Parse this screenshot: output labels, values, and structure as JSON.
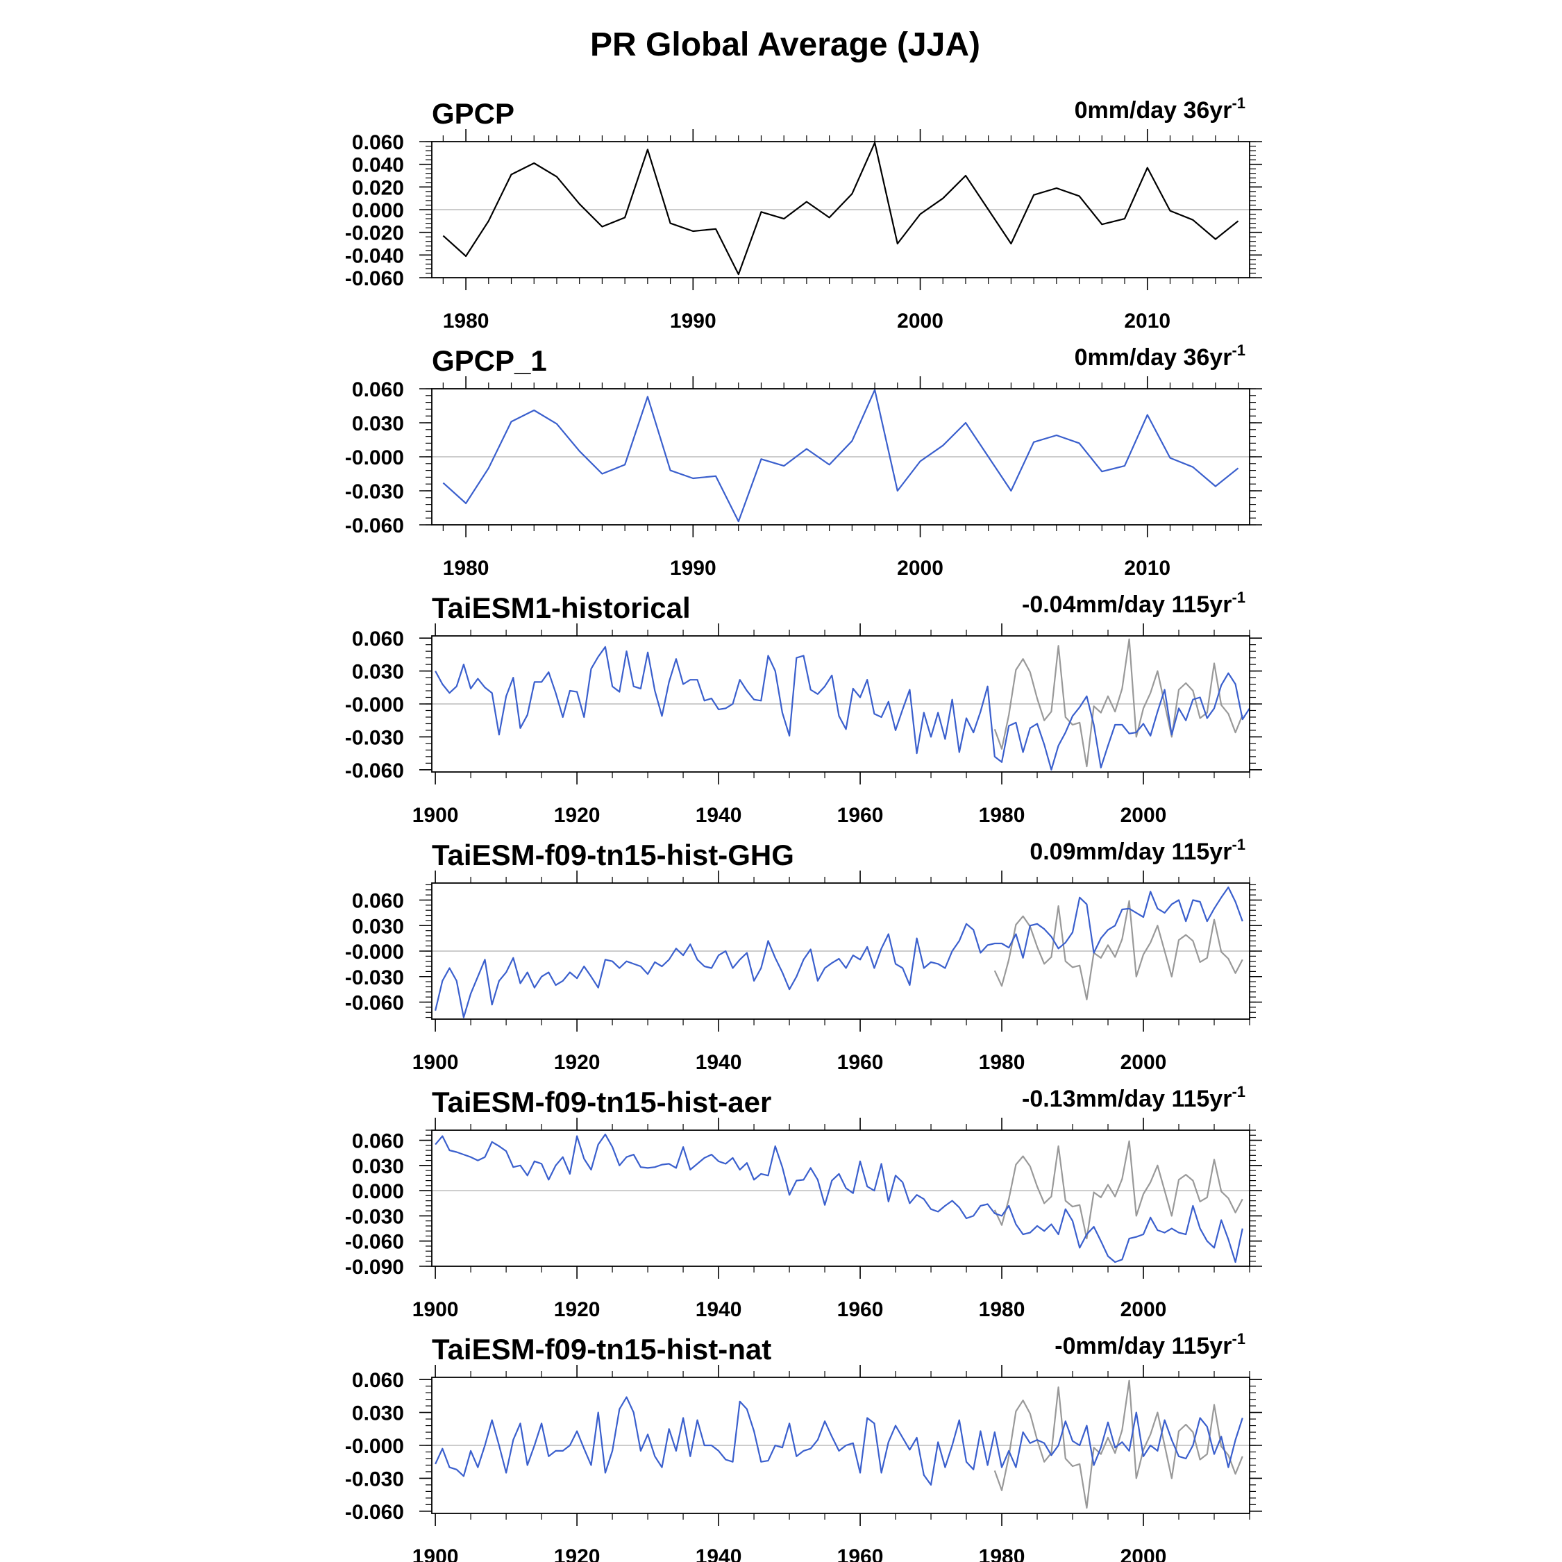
{
  "title": "PR Global Average (JJA)",
  "colors": {
    "observed": "#000000",
    "model": "#3a5fcd",
    "overlay": "#999999",
    "zero_line": "#bbbbbb",
    "frame": "#000000"
  },
  "chart_data": [
    {
      "type": "line",
      "panel_title": "GPCP",
      "trend_value": "0mm/day 36yr",
      "trend_sup": "-1",
      "xlim": [
        1978.5,
        2014.5
      ],
      "ylim": [
        -0.06,
        0.06
      ],
      "yticks": [
        -0.06,
        -0.04,
        -0.02,
        0.0,
        0.02,
        0.04,
        0.06
      ],
      "ytick_labels": [
        "-0.060",
        "-0.040",
        "-0.020",
        "0.000",
        "0.020",
        "0.040",
        "0.060"
      ],
      "xticks": [
        1980,
        1990,
        2000,
        2010
      ],
      "xtick_labels": [
        "1980",
        "1990",
        "2000",
        "2010"
      ],
      "series": [
        {
          "role": "observed",
          "color": "#000000",
          "x_start": 1979,
          "values": [
            -0.023,
            -0.041,
            -0.01,
            0.031,
            0.041,
            0.029,
            0.005,
            -0.015,
            -0.007,
            0.053,
            -0.012,
            -0.019,
            -0.017,
            -0.057,
            -0.002,
            -0.008,
            0.007,
            -0.007,
            0.014,
            0.059,
            -0.03,
            -0.004,
            0.01,
            0.03,
            0.0,
            -0.03,
            0.013,
            0.019,
            0.012,
            -0.013,
            -0.008,
            0.037,
            -0.001,
            -0.009,
            -0.026,
            -0.01
          ]
        }
      ]
    },
    {
      "type": "line",
      "panel_title": "GPCP_1",
      "trend_value": "0mm/day 36yr",
      "trend_sup": "-1",
      "xlim": [
        1978.5,
        2014.5
      ],
      "ylim": [
        -0.06,
        0.06
      ],
      "yticks": [
        -0.06,
        -0.03,
        0.0,
        0.03,
        0.06
      ],
      "ytick_labels": [
        "-0.060",
        "-0.030",
        "-0.000",
        "0.030",
        "0.060"
      ],
      "xticks": [
        1980,
        1990,
        2000,
        2010
      ],
      "xtick_labels": [
        "1980",
        "1990",
        "2000",
        "2010"
      ],
      "series": [
        {
          "role": "model",
          "color": "#3a5fcd",
          "x_start": 1979,
          "values": [
            -0.023,
            -0.041,
            -0.01,
            0.031,
            0.041,
            0.029,
            0.005,
            -0.015,
            -0.007,
            0.053,
            -0.012,
            -0.019,
            -0.017,
            -0.057,
            -0.002,
            -0.008,
            0.007,
            -0.007,
            0.014,
            0.059,
            -0.03,
            -0.004,
            0.01,
            0.03,
            0.0,
            -0.03,
            0.013,
            0.019,
            0.012,
            -0.013,
            -0.008,
            0.037,
            -0.001,
            -0.009,
            -0.026,
            -0.01
          ]
        }
      ]
    },
    {
      "type": "line",
      "panel_title": "TaiESM1-historical",
      "trend_value": "-0.04mm/day 115yr",
      "trend_sup": "-1",
      "xlim": [
        1899.5,
        2015
      ],
      "ylim": [
        -0.062,
        0.062
      ],
      "yticks": [
        -0.06,
        -0.03,
        0.0,
        0.03,
        0.06
      ],
      "ytick_labels": [
        "-0.060",
        "-0.030",
        "-0.000",
        "0.030",
        "0.060"
      ],
      "xticks": [
        1900,
        1920,
        1940,
        1960,
        1980,
        2000
      ],
      "xtick_labels": [
        "1900",
        "1920",
        "1940",
        "1960",
        "1980",
        "2000"
      ],
      "series": [
        {
          "role": "model",
          "color": "#3a5fcd",
          "x_start": 1900,
          "values": [
            0.03,
            0.018,
            0.01,
            0.016,
            0.036,
            0.014,
            0.023,
            0.015,
            0.01,
            -0.028,
            0.007,
            0.024,
            -0.022,
            -0.01,
            0.02,
            0.02,
            0.029,
            0.01,
            -0.012,
            0.012,
            0.011,
            -0.012,
            0.032,
            0.043,
            0.052,
            0.016,
            0.011,
            0.048,
            0.016,
            0.014,
            0.047,
            0.012,
            -0.011,
            0.02,
            0.041,
            0.018,
            0.022,
            0.022,
            0.003,
            0.005,
            -0.005,
            -0.004,
            0.0,
            0.022,
            0.012,
            0.004,
            0.003,
            0.044,
            0.03,
            -0.008,
            -0.029,
            0.042,
            0.044,
            0.013,
            0.009,
            0.016,
            0.026,
            -0.011,
            -0.023,
            0.014,
            0.006,
            0.022,
            -0.009,
            -0.012,
            0.002,
            -0.024,
            -0.005,
            0.013,
            -0.045,
            -0.008,
            -0.03,
            -0.008,
            -0.032,
            0.004,
            -0.044,
            -0.013,
            -0.026,
            -0.007,
            0.016,
            -0.048,
            -0.053,
            -0.02,
            -0.017,
            -0.044,
            -0.022,
            -0.018,
            -0.037,
            -0.06,
            -0.038,
            -0.026,
            -0.011,
            -0.003,
            0.007,
            -0.019,
            -0.058,
            -0.038,
            -0.019,
            -0.019,
            -0.027,
            -0.026,
            -0.018,
            -0.029,
            -0.007,
            0.013,
            -0.028,
            -0.004,
            -0.015,
            0.004,
            0.006,
            -0.013,
            -0.004,
            0.017,
            0.028,
            0.018,
            -0.014,
            -0.004
          ]
        },
        {
          "role": "overlay",
          "color": "#999999",
          "x_start": 1979,
          "values": [
            -0.023,
            -0.041,
            -0.01,
            0.031,
            0.041,
            0.029,
            0.005,
            -0.015,
            -0.007,
            0.053,
            -0.012,
            -0.019,
            -0.017,
            -0.057,
            -0.002,
            -0.008,
            0.007,
            -0.007,
            0.014,
            0.059,
            -0.03,
            -0.004,
            0.01,
            0.03,
            0.0,
            -0.03,
            0.013,
            0.019,
            0.012,
            -0.013,
            -0.008,
            0.037,
            -0.001,
            -0.009,
            -0.026,
            -0.01
          ]
        }
      ]
    },
    {
      "type": "line",
      "panel_title": "TaiESM-f09-tn15-hist-GHG",
      "trend_value": "0.09mm/day 115yr",
      "trend_sup": "-1",
      "xlim": [
        1899.5,
        2015
      ],
      "ylim": [
        -0.08,
        0.08
      ],
      "yticks": [
        -0.06,
        -0.03,
        0.0,
        0.03,
        0.06
      ],
      "ytick_labels": [
        "-0.060",
        "-0.030",
        "-0.000",
        "0.030",
        "0.060"
      ],
      "xticks": [
        1900,
        1920,
        1940,
        1960,
        1980,
        2000
      ],
      "xtick_labels": [
        "1900",
        "1920",
        "1940",
        "1960",
        "1980",
        "2000"
      ],
      "series": [
        {
          "role": "model",
          "color": "#3a5fcd",
          "x_start": 1900,
          "values": [
            -0.07,
            -0.035,
            -0.02,
            -0.035,
            -0.078,
            -0.05,
            -0.03,
            -0.01,
            -0.063,
            -0.035,
            -0.025,
            -0.008,
            -0.038,
            -0.025,
            -0.043,
            -0.03,
            -0.025,
            -0.04,
            -0.035,
            -0.025,
            -0.032,
            -0.018,
            -0.03,
            -0.043,
            -0.01,
            -0.012,
            -0.02,
            -0.012,
            -0.015,
            -0.018,
            -0.027,
            -0.013,
            -0.018,
            -0.01,
            0.003,
            -0.005,
            0.008,
            -0.01,
            -0.018,
            -0.02,
            -0.005,
            0.0,
            -0.02,
            -0.01,
            -0.002,
            -0.035,
            -0.02,
            0.012,
            -0.008,
            -0.025,
            -0.045,
            -0.03,
            -0.01,
            0.002,
            -0.035,
            -0.02,
            -0.014,
            -0.009,
            -0.02,
            -0.005,
            -0.01,
            0.005,
            -0.02,
            0.003,
            0.02,
            -0.015,
            -0.02,
            -0.04,
            0.015,
            -0.02,
            -0.013,
            -0.015,
            -0.02,
            0.0,
            0.012,
            0.032,
            0.025,
            -0.002,
            0.007,
            0.009,
            0.009,
            0.004,
            0.02,
            -0.008,
            0.03,
            0.032,
            0.026,
            0.017,
            0.003,
            0.01,
            0.022,
            0.063,
            0.055,
            -0.002,
            0.015,
            0.025,
            0.03,
            0.049,
            0.05,
            0.045,
            0.04,
            0.07,
            0.05,
            0.045,
            0.055,
            0.06,
            0.035,
            0.06,
            0.058,
            0.035,
            0.05,
            0.063,
            0.075,
            0.058,
            0.035
          ]
        },
        {
          "role": "overlay",
          "color": "#999999",
          "x_start": 1979,
          "values": [
            -0.023,
            -0.041,
            -0.01,
            0.031,
            0.041,
            0.029,
            0.005,
            -0.015,
            -0.007,
            0.053,
            -0.012,
            -0.019,
            -0.017,
            -0.057,
            -0.002,
            -0.008,
            0.007,
            -0.007,
            0.014,
            0.059,
            -0.03,
            -0.004,
            0.01,
            0.03,
            0.0,
            -0.03,
            0.013,
            0.019,
            0.012,
            -0.013,
            -0.008,
            0.037,
            -0.001,
            -0.009,
            -0.026,
            -0.01
          ]
        }
      ]
    },
    {
      "type": "line",
      "panel_title": "TaiESM-f09-tn15-hist-aer",
      "trend_value": "-0.13mm/day 115yr",
      "trend_sup": "-1",
      "xlim": [
        1899.5,
        2015
      ],
      "ylim": [
        -0.09,
        0.072
      ],
      "yticks": [
        -0.09,
        -0.06,
        -0.03,
        0.0,
        0.03,
        0.06
      ],
      "ytick_labels": [
        "-0.090",
        "-0.060",
        "-0.030",
        "0.000",
        "0.030",
        "0.060"
      ],
      "xticks": [
        1900,
        1920,
        1940,
        1960,
        1980,
        2000
      ],
      "xtick_labels": [
        "1900",
        "1920",
        "1940",
        "1960",
        "1980",
        "2000"
      ],
      "series": [
        {
          "role": "model",
          "color": "#3a5fcd",
          "x_start": 1900,
          "values": [
            0.055,
            0.065,
            0.048,
            0.046,
            0.043,
            0.04,
            0.036,
            0.04,
            0.058,
            0.053,
            0.047,
            0.028,
            0.03,
            0.018,
            0.035,
            0.032,
            0.013,
            0.03,
            0.04,
            0.02,
            0.065,
            0.038,
            0.025,
            0.055,
            0.067,
            0.052,
            0.03,
            0.04,
            0.043,
            0.028,
            0.027,
            0.028,
            0.031,
            0.032,
            0.027,
            0.052,
            0.025,
            0.032,
            0.039,
            0.043,
            0.035,
            0.032,
            0.039,
            0.025,
            0.033,
            0.013,
            0.02,
            0.018,
            0.053,
            0.028,
            -0.005,
            0.012,
            0.013,
            0.027,
            0.013,
            -0.017,
            0.012,
            0.02,
            0.003,
            -0.003,
            0.035,
            0.005,
            0.0,
            0.032,
            -0.013,
            0.018,
            0.01,
            -0.015,
            -0.005,
            -0.01,
            -0.022,
            -0.025,
            -0.018,
            -0.012,
            -0.02,
            -0.033,
            -0.03,
            -0.018,
            -0.016,
            -0.027,
            -0.03,
            -0.018,
            -0.04,
            -0.052,
            -0.05,
            -0.042,
            -0.048,
            -0.04,
            -0.052,
            -0.022,
            -0.036,
            -0.068,
            -0.052,
            -0.043,
            -0.06,
            -0.078,
            -0.085,
            -0.082,
            -0.057,
            -0.055,
            -0.052,
            -0.032,
            -0.047,
            -0.05,
            -0.045,
            -0.05,
            -0.052,
            -0.018,
            -0.045,
            -0.06,
            -0.068,
            -0.035,
            -0.058,
            -0.085,
            -0.045
          ]
        },
        {
          "role": "overlay",
          "color": "#999999",
          "x_start": 1979,
          "values": [
            -0.023,
            -0.041,
            -0.01,
            0.031,
            0.041,
            0.029,
            0.005,
            -0.015,
            -0.007,
            0.053,
            -0.012,
            -0.019,
            -0.017,
            -0.057,
            -0.002,
            -0.008,
            0.007,
            -0.007,
            0.014,
            0.059,
            -0.03,
            -0.004,
            0.01,
            0.03,
            0.0,
            -0.03,
            0.013,
            0.019,
            0.012,
            -0.013,
            -0.008,
            0.037,
            -0.001,
            -0.009,
            -0.026,
            -0.01
          ]
        }
      ]
    },
    {
      "type": "line",
      "panel_title": "TaiESM-f09-tn15-hist-nat",
      "trend_value": "-0mm/day 115yr",
      "trend_sup": "-1",
      "xlim": [
        1899.5,
        2015
      ],
      "ylim": [
        -0.062,
        0.062
      ],
      "yticks": [
        -0.06,
        -0.03,
        0.0,
        0.03,
        0.06
      ],
      "ytick_labels": [
        "-0.060",
        "-0.030",
        "-0.000",
        "0.030",
        "0.060"
      ],
      "xticks": [
        1900,
        1920,
        1940,
        1960,
        1980,
        2000
      ],
      "xtick_labels": [
        "1900",
        "1920",
        "1940",
        "1960",
        "1980",
        "2000"
      ],
      "series": [
        {
          "role": "model",
          "color": "#3a5fcd",
          "x_start": 1900,
          "values": [
            -0.017,
            -0.003,
            -0.02,
            -0.022,
            -0.028,
            -0.005,
            -0.02,
            0.0,
            0.023,
            0.0,
            -0.025,
            0.005,
            0.02,
            -0.018,
            0.0,
            0.02,
            -0.01,
            -0.005,
            -0.005,
            0.0,
            0.013,
            -0.003,
            -0.018,
            0.03,
            -0.025,
            -0.005,
            0.033,
            0.044,
            0.03,
            -0.005,
            0.01,
            -0.01,
            -0.02,
            0.015,
            -0.005,
            0.025,
            -0.01,
            0.023,
            0.0,
            0.0,
            -0.005,
            -0.013,
            -0.015,
            0.04,
            0.033,
            0.013,
            -0.015,
            -0.014,
            0.0,
            -0.002,
            0.02,
            -0.01,
            -0.005,
            -0.003,
            0.005,
            0.022,
            0.008,
            -0.005,
            0.0,
            0.002,
            -0.025,
            0.025,
            0.02,
            -0.025,
            0.003,
            0.018,
            0.007,
            -0.004,
            0.007,
            -0.027,
            -0.036,
            0.003,
            -0.02,
            0.0,
            0.023,
            -0.015,
            -0.022,
            0.013,
            -0.018,
            0.012,
            -0.02,
            -0.005,
            -0.02,
            0.012,
            0.002,
            0.005,
            0.002,
            -0.009,
            0.0,
            0.022,
            0.004,
            0.0,
            0.018,
            -0.018,
            -0.002,
            0.021,
            -0.002,
            0.003,
            -0.005,
            0.03,
            -0.01,
            0.0,
            -0.005,
            0.023,
            0.005,
            -0.01,
            -0.012,
            0.0,
            0.025,
            0.017,
            -0.008,
            0.008,
            -0.02,
            0.005,
            0.025
          ]
        },
        {
          "role": "overlay",
          "color": "#999999",
          "x_start": 1979,
          "values": [
            -0.023,
            -0.041,
            -0.01,
            0.031,
            0.041,
            0.029,
            0.005,
            -0.015,
            -0.007,
            0.053,
            -0.012,
            -0.019,
            -0.017,
            -0.057,
            -0.002,
            -0.008,
            0.007,
            -0.007,
            0.014,
            0.059,
            -0.03,
            -0.004,
            0.01,
            0.03,
            0.0,
            -0.03,
            0.013,
            0.019,
            0.012,
            -0.013,
            -0.008,
            0.037,
            -0.001,
            -0.009,
            -0.026,
            -0.01
          ]
        }
      ]
    }
  ]
}
